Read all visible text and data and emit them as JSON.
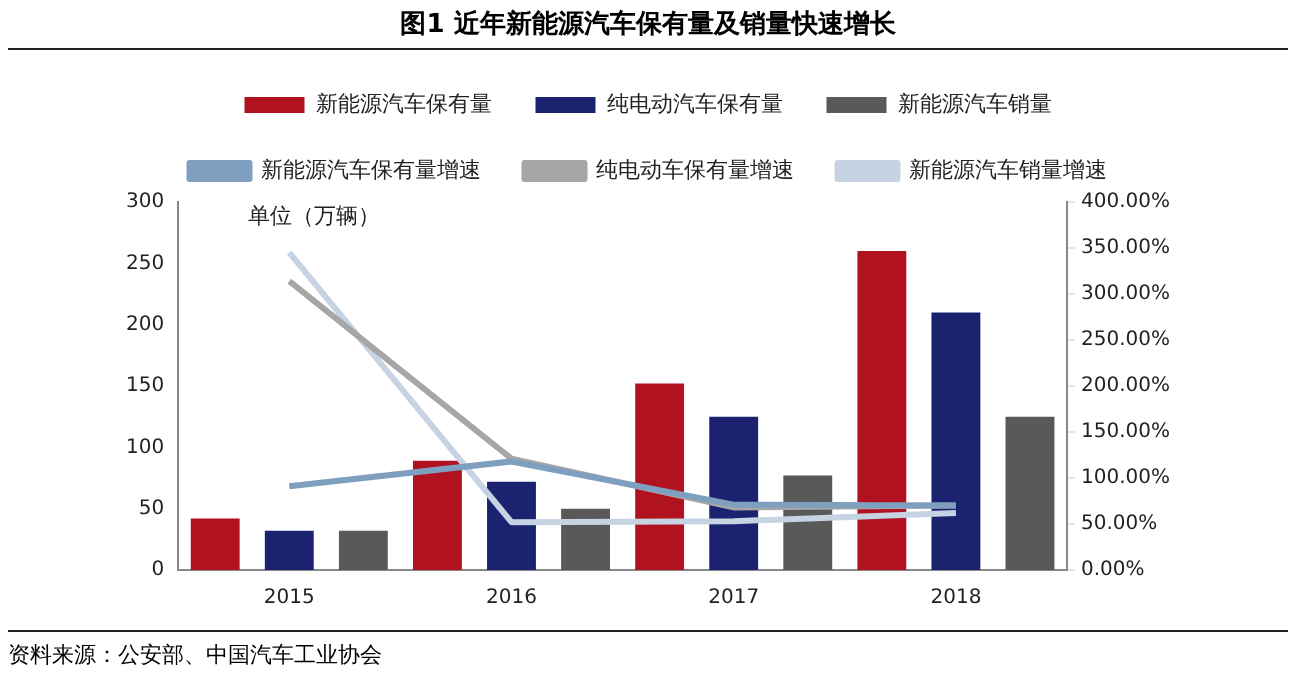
{
  "chart_data": {
    "type": "bar",
    "title": "图1 近年新能源汽车保有量及销量快速增长",
    "ylabel": "单位（万辆）",
    "categories": [
      "2015",
      "2016",
      "2017",
      "2018"
    ],
    "series": [
      {
        "name": "新能源汽车保有量",
        "color": "#b0121f",
        "values": [
          42,
          89,
          152,
          260
        ]
      },
      {
        "name": "纯电动汽车保有量",
        "color": "#1b2370",
        "values": [
          32,
          72,
          125,
          210
        ]
      },
      {
        "name": "新能源汽车销量",
        "color": "#595959",
        "values": [
          32,
          50,
          77,
          125
        ]
      },
      {
        "name": "新能源汽车保有量增速",
        "type": "line",
        "axis": "y2",
        "color": "#7f9fc0",
        "values": [
          91,
          118,
          71,
          70
        ]
      },
      {
        "name": "纯电动车保有量增速",
        "type": "line",
        "axis": "y2",
        "color": "#a6a6a6",
        "values": [
          314,
          121,
          68,
          70
        ]
      },
      {
        "name": "新能源汽车销量增速",
        "type": "line",
        "axis": "y2",
        "color": "#c5d3e3",
        "values": [
          345,
          52,
          53,
          62
        ]
      }
    ],
    "ylim": [
      0,
      300
    ],
    "yticks": [
      0,
      50,
      100,
      150,
      200,
      250,
      300
    ],
    "y2lim": [
      0,
      400
    ],
    "y2ticks": [
      {
        "value": 0,
        "label": "0.00%"
      },
      {
        "value": 50,
        "label": "50.00%"
      },
      {
        "value": 100,
        "label": "100.00%"
      },
      {
        "value": 150,
        "label": "150.00%"
      },
      {
        "value": 200,
        "label": "200.00%"
      },
      {
        "value": 250,
        "label": "250.00%"
      },
      {
        "value": 300,
        "label": "300.00%"
      },
      {
        "value": 350,
        "label": "350.00%"
      },
      {
        "value": 400,
        "label": "400.00%"
      }
    ],
    "grid": false,
    "legend": "top",
    "marker": "none",
    "annotations": [
      "资料来源：公安部、中国汽车工业协会"
    ]
  }
}
